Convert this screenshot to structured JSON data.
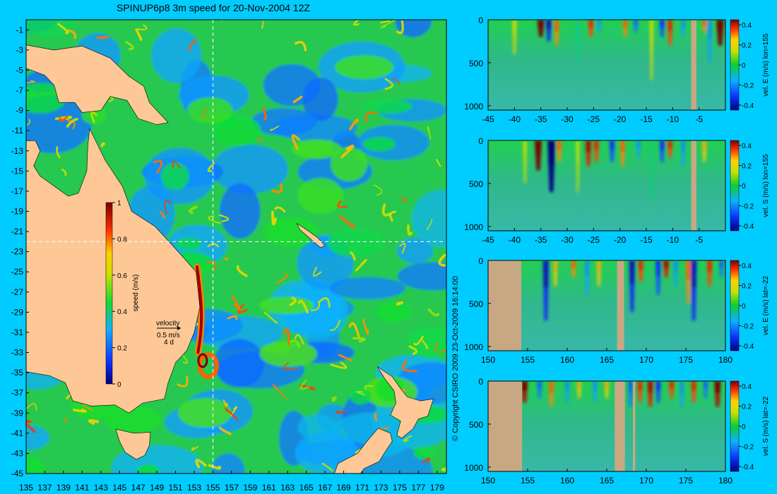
{
  "title": "SPINUP6p8 3m speed for 20-Nov-2004 12Z",
  "copyright": "© Copyright CSIRO 2009   23-Oct-2009 16:14:00",
  "colors": {
    "background": "#00ccff",
    "land": "#fdc896",
    "section_land": "#c8a882",
    "guide_line": "#ffffff"
  },
  "chart_data": [
    {
      "type": "heatmap",
      "name": "surface-speed-map",
      "title": "SPINUP6p8 3m speed for 20-Nov-2004 12Z",
      "x_ticks": [
        "135",
        "137",
        "139",
        "141",
        "143",
        "145",
        "147",
        "149",
        "151",
        "153",
        "155",
        "157",
        "159",
        "161",
        "163",
        "165",
        "167",
        "169",
        "171",
        "173",
        "175",
        "177",
        "179"
      ],
      "y_ticks": [
        "-1",
        "-3",
        "-5",
        "-7",
        "-9",
        "-11",
        "-13",
        "-15",
        "-17",
        "-19",
        "-21",
        "-23",
        "-25",
        "-27",
        "-29",
        "-31",
        "-33",
        "-35",
        "-37",
        "-39",
        "-41",
        "-43",
        "-45"
      ],
      "xlim": [
        135,
        180
      ],
      "ylim": [
        -45,
        0
      ],
      "section_lines": {
        "lon": 155,
        "lat": -22
      },
      "colorbar": {
        "label": "speed (m/s)",
        "ticks": [
          "0",
          "0.2",
          "0.4",
          "0.6",
          "0.8",
          "1"
        ],
        "range": [
          0,
          1
        ]
      },
      "velocity_key": {
        "label": "velocity",
        "speed": "0.5 m/s",
        "duration": "4 d"
      },
      "land_masses": [
        {
          "name": "Australia",
          "outline": [
            [
              141.8,
              -10.8
            ],
            [
              143.5,
              -14
            ],
            [
              145.3,
              -16.5
            ],
            [
              146.3,
              -19
            ],
            [
              148.8,
              -20.5
            ],
            [
              150.8,
              -22.5
            ],
            [
              153.2,
              -25
            ],
            [
              153.6,
              -28.5
            ],
            [
              153,
              -31
            ],
            [
              152.2,
              -32.8
            ],
            [
              151,
              -34
            ],
            [
              150.2,
              -36
            ],
            [
              149.8,
              -37.6
            ],
            [
              147.5,
              -38
            ],
            [
              146,
              -39
            ],
            [
              144.5,
              -38.2
            ],
            [
              142,
              -38.3
            ],
            [
              140,
              -37.8
            ],
            [
              139.2,
              -36
            ],
            [
              137.5,
              -35.3
            ],
            [
              135,
              -34.9
            ],
            [
              135,
              -12
            ],
            [
              136,
              -12
            ],
            [
              136.5,
              -13
            ],
            [
              135.8,
              -14.5
            ],
            [
              136.5,
              -15.5
            ],
            [
              138,
              -16.5
            ],
            [
              139.5,
              -17.5
            ],
            [
              140.6,
              -17.2
            ],
            [
              141.5,
              -15
            ],
            [
              141.6,
              -12.5
            ]
          ]
        },
        {
          "name": "New Guinea",
          "outline": [
            [
              135,
              -2.5
            ],
            [
              138,
              -3
            ],
            [
              141,
              -2.6
            ],
            [
              144,
              -3.8
            ],
            [
              146,
              -5.6
            ],
            [
              147.6,
              -6.6
            ],
            [
              148.2,
              -8.2
            ],
            [
              150.2,
              -10.2
            ],
            [
              149,
              -10.4
            ],
            [
              147,
              -9.8
            ],
            [
              145.8,
              -8
            ],
            [
              144,
              -7.6
            ],
            [
              143,
              -9
            ],
            [
              141,
              -9.2
            ],
            [
              140.2,
              -8.2
            ],
            [
              138.5,
              -8.2
            ],
            [
              138,
              -6.5
            ],
            [
              137,
              -5.5
            ],
            [
              135,
              -4.8
            ]
          ]
        },
        {
          "name": "Tasmania",
          "outline": [
            [
              144.6,
              -40.6
            ],
            [
              146.5,
              -41
            ],
            [
              148.3,
              -40.9
            ],
            [
              148.2,
              -42.2
            ],
            [
              147.7,
              -43.2
            ],
            [
              146.8,
              -43.6
            ],
            [
              145.6,
              -42.9
            ],
            [
              145,
              -41.8
            ]
          ]
        },
        {
          "name": "New Zealand North",
          "outline": [
            [
              172.6,
              -34.4
            ],
            [
              174.2,
              -35.4
            ],
            [
              175.2,
              -36.7
            ],
            [
              175.8,
              -37.4
            ],
            [
              177.2,
              -37.8
            ],
            [
              178.6,
              -37.6
            ],
            [
              178,
              -39.3
            ],
            [
              177,
              -39.6
            ],
            [
              176.4,
              -40.6
            ],
            [
              175.2,
              -41.5
            ],
            [
              174.7,
              -41.2
            ],
            [
              175.1,
              -39.8
            ],
            [
              174,
              -39.2
            ],
            [
              174.6,
              -38
            ],
            [
              174.4,
              -36.8
            ],
            [
              173.4,
              -35.6
            ]
          ]
        },
        {
          "name": "New Zealand South",
          "outline": [
            [
              172.7,
              -40.5
            ],
            [
              174,
              -41
            ],
            [
              174.2,
              -41.8
            ],
            [
              173.4,
              -42.9
            ],
            [
              172.8,
              -43.8
            ],
            [
              171.2,
              -44.5
            ],
            [
              170.8,
              -45
            ],
            [
              168,
              -45
            ],
            [
              168.4,
              -44
            ],
            [
              170.5,
              -43
            ],
            [
              171.5,
              -41.8
            ]
          ]
        },
        {
          "name": "New Caledonia",
          "outline": [
            [
              164,
              -20.2
            ],
            [
              165,
              -20.8
            ],
            [
              166.2,
              -21.6
            ],
            [
              167,
              -22.4
            ],
            [
              166.5,
              -22.6
            ],
            [
              165.4,
              -21.7
            ],
            [
              164.3,
              -20.8
            ]
          ]
        }
      ]
    },
    {
      "type": "heatmap",
      "name": "vel-E-lon155",
      "colorbar_label": "vel. E (m/s)  lon=155",
      "x_ticks": [
        "-45",
        "-40",
        "-35",
        "-30",
        "-25",
        "-20",
        "-15",
        "-10",
        "-5"
      ],
      "xlim": [
        -45,
        0
      ],
      "y_ticks": [
        "0",
        "500",
        "1000"
      ],
      "ylim": [
        0,
        1050
      ],
      "colorbar": {
        "ticks": [
          "0.4",
          "0.2",
          "0",
          "-0.2",
          "-0.4"
        ],
        "range": [
          -0.45,
          0.45
        ]
      },
      "land_columns": [
        [
          -6.5,
          -5.5
        ]
      ],
      "features": [
        [
          -35,
          200,
          0.45
        ],
        [
          -33.5,
          250,
          -0.35
        ],
        [
          -32,
          300,
          0.25
        ],
        [
          -25.5,
          200,
          0.3
        ],
        [
          -24,
          150,
          -0.2
        ],
        [
          -19,
          200,
          0.25
        ],
        [
          -17,
          150,
          -0.25
        ],
        [
          -12,
          200,
          -0.3
        ],
        [
          -10.5,
          300,
          0.3
        ],
        [
          -8,
          200,
          -0.2
        ],
        [
          -4,
          150,
          0.25
        ],
        [
          -1,
          300,
          0.5
        ],
        [
          -3,
          500,
          -0.2
        ],
        [
          -40,
          400,
          0.15
        ],
        [
          -28,
          500,
          -0.1
        ],
        [
          -14,
          700,
          0.12
        ]
      ]
    },
    {
      "type": "heatmap",
      "name": "vel-S-lon155",
      "colorbar_label": "vel. S (m/s)  lon=155",
      "x_ticks": [
        "-45",
        "-40",
        "-35",
        "-30",
        "-25",
        "-20",
        "-15",
        "-10",
        "-5"
      ],
      "xlim": [
        -45,
        0
      ],
      "y_ticks": [
        "0",
        "500",
        "1000"
      ],
      "ylim": [
        0,
        1050
      ],
      "colorbar": {
        "ticks": [
          "0.4",
          "0.2",
          "0",
          "-0.2",
          "-0.4"
        ],
        "range": [
          -0.45,
          0.45
        ]
      },
      "land_columns": [
        [
          -6.5,
          -5.5
        ]
      ],
      "features": [
        [
          -35.5,
          350,
          0.45
        ],
        [
          -33,
          600,
          -0.5
        ],
        [
          -31.5,
          250,
          0.25
        ],
        [
          -26,
          300,
          0.35
        ],
        [
          -24.5,
          250,
          0.3
        ],
        [
          -21.5,
          250,
          -0.3
        ],
        [
          -19.5,
          300,
          0.25
        ],
        [
          -16.5,
          200,
          -0.2
        ],
        [
          -12,
          250,
          -0.3
        ],
        [
          -10.5,
          200,
          0.3
        ],
        [
          -8,
          300,
          -0.2
        ],
        [
          -4,
          250,
          0.2
        ],
        [
          -38,
          500,
          0.1
        ],
        [
          -28,
          600,
          0.08
        ],
        [
          -14,
          700,
          -0.08
        ]
      ]
    },
    {
      "type": "heatmap",
      "name": "vel-E-lat22",
      "colorbar_label": "vel. E (m/s)  lat=-22",
      "x_ticks": [
        "150",
        "155",
        "160",
        "165",
        "170",
        "175",
        "180"
      ],
      "xlim": [
        150,
        180
      ],
      "y_ticks": [
        "0",
        "500",
        "1000"
      ],
      "ylim": [
        0,
        1050
      ],
      "colorbar": {
        "ticks": [
          "0.4",
          "0.2",
          "0",
          "-0.2",
          "-0.4"
        ],
        "range": [
          -0.45,
          0.45
        ]
      },
      "land_columns": [
        [
          150,
          154.2
        ],
        [
          166.3,
          167.2
        ]
      ],
      "features": [
        [
          157.3,
          700,
          -0.35
        ],
        [
          158.5,
          300,
          0.2
        ],
        [
          160.8,
          200,
          0.25
        ],
        [
          162.5,
          400,
          -0.2
        ],
        [
          164,
          300,
          0.2
        ],
        [
          168.2,
          600,
          -0.35
        ],
        [
          169.3,
          250,
          0.3
        ],
        [
          171.5,
          400,
          -0.3
        ],
        [
          172.5,
          200,
          0.35
        ],
        [
          173.7,
          300,
          -0.2
        ],
        [
          175.3,
          500,
          0.25
        ],
        [
          176,
          700,
          -0.35
        ],
        [
          178,
          300,
          0.3
        ],
        [
          179.5,
          200,
          -0.25
        ]
      ]
    },
    {
      "type": "heatmap",
      "name": "vel-S-lat22",
      "colorbar_label": "vel. S (m/s)  lat=-22",
      "x_ticks": [
        "150",
        "155",
        "160",
        "165",
        "170",
        "175",
        "180"
      ],
      "xlim": [
        150,
        180
      ],
      "y_ticks": [
        "0",
        "500",
        "1000"
      ],
      "ylim": [
        0,
        1050
      ],
      "colorbar": {
        "ticks": [
          "0.4",
          "0.2",
          "0",
          "-0.2",
          "-0.4"
        ],
        "range": [
          -0.45,
          0.45
        ]
      },
      "land_columns": [
        [
          150,
          154.3
        ],
        [
          166,
          167.3
        ],
        [
          168.3,
          168.6
        ]
      ],
      "features": [
        [
          154.6,
          250,
          0.4
        ],
        [
          156.5,
          200,
          -0.25
        ],
        [
          158,
          300,
          0.25
        ],
        [
          160,
          250,
          -0.2
        ],
        [
          161.5,
          200,
          0.2
        ],
        [
          163.5,
          250,
          -0.2
        ],
        [
          165,
          200,
          0.2
        ],
        [
          168,
          300,
          -0.25
        ],
        [
          169.2,
          250,
          0.3
        ],
        [
          170.5,
          300,
          0.35
        ],
        [
          171.5,
          250,
          -0.3
        ],
        [
          173.2,
          200,
          0.3
        ],
        [
          174.5,
          300,
          -0.2
        ],
        [
          176,
          250,
          0.3
        ],
        [
          177.5,
          200,
          -0.25
        ],
        [
          179,
          300,
          0.4
        ]
      ]
    }
  ]
}
